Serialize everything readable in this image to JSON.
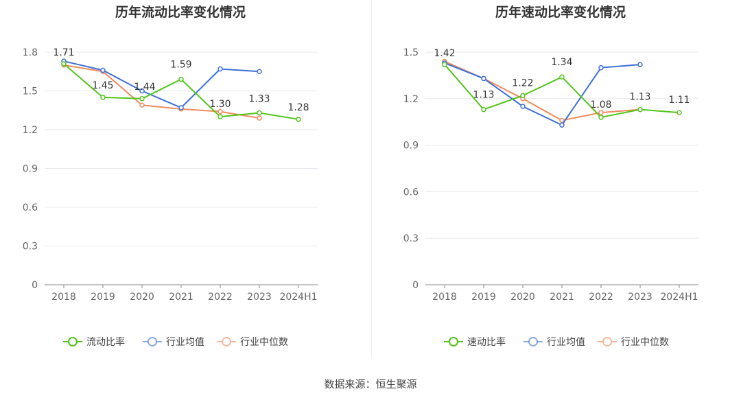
{
  "chart_data": [
    {
      "type": "line",
      "title": "历年流动比率变化情况",
      "categories": [
        "2018",
        "2019",
        "2020",
        "2021",
        "2022",
        "2023",
        "2024H1"
      ],
      "ylim": [
        0,
        1.8
      ],
      "yticks": [
        "0",
        "0.3",
        "0.6",
        "0.9",
        "1.2",
        "1.5",
        "1.8"
      ],
      "grid": true,
      "legend_position": "bottom",
      "series": [
        {
          "name": "流动比率",
          "color": "#52c41a",
          "values": [
            1.71,
            1.45,
            1.44,
            1.59,
            1.3,
            1.33,
            1.28
          ],
          "labels": [
            "1.71",
            "1.45",
            "1.44",
            "1.59",
            "1.30",
            "1.33",
            "1.28"
          ]
        },
        {
          "name": "行业均值",
          "color": "#3d6fd9",
          "values": [
            1.73,
            1.66,
            1.5,
            1.37,
            1.67,
            1.65,
            null
          ]
        },
        {
          "name": "行业中位数",
          "color": "#f08a5d",
          "values": [
            1.7,
            1.65,
            1.39,
            1.36,
            1.34,
            1.29,
            null
          ]
        }
      ]
    },
    {
      "type": "line",
      "title": "历年速动比率变化情况",
      "categories": [
        "2018",
        "2019",
        "2020",
        "2021",
        "2022",
        "2023",
        "2024H1"
      ],
      "ylim": [
        0,
        1.5
      ],
      "yticks": [
        "0",
        "0.3",
        "0.6",
        "0.9",
        "1.2",
        "1.5"
      ],
      "grid": true,
      "legend_position": "bottom",
      "series": [
        {
          "name": "速动比率",
          "color": "#52c41a",
          "values": [
            1.42,
            1.13,
            1.22,
            1.34,
            1.08,
            1.13,
            1.11
          ],
          "labels": [
            "1.42",
            "1.13",
            "1.22",
            "1.34",
            "1.08",
            "1.13",
            "1.11"
          ]
        },
        {
          "name": "行业均值",
          "color": "#3d6fd9",
          "values": [
            1.43,
            1.33,
            1.15,
            1.03,
            1.4,
            1.42,
            null
          ]
        },
        {
          "name": "行业中位数",
          "color": "#f08a5d",
          "values": [
            1.44,
            1.33,
            1.2,
            1.06,
            1.11,
            1.13,
            null
          ]
        }
      ]
    }
  ],
  "footer": {
    "source": "数据来源：恒生聚源"
  }
}
